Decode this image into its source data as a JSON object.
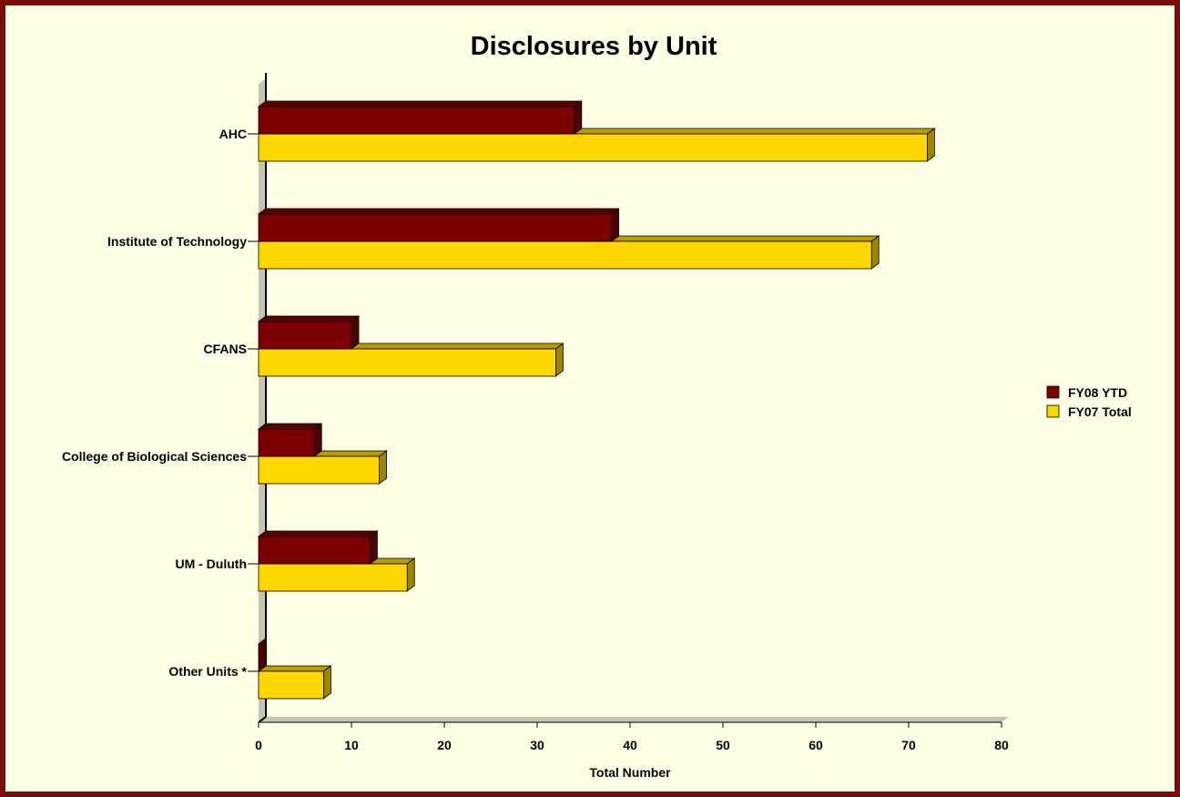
{
  "chart_data": {
    "type": "bar",
    "orientation": "horizontal",
    "title": "Disclosures by Unit",
    "xlabel": "Total Number",
    "ylabel": "",
    "xlim": [
      0,
      80
    ],
    "ticks": [
      0,
      10,
      20,
      30,
      40,
      50,
      60,
      70,
      80
    ],
    "categories": [
      "AHC",
      "Institute of Technology",
      "CFANS",
      "College of Biological Sciences",
      "UM - Duluth",
      "Other Units *"
    ],
    "series": [
      {
        "name": "FY08 YTD",
        "values": [
          34,
          38,
          10,
          6,
          12,
          0
        ],
        "color": "#7b0000"
      },
      {
        "name": "FY07 Total",
        "values": [
          72,
          66,
          32,
          13,
          16,
          7
        ],
        "color": "#ffd700"
      }
    ],
    "legend_position": "right",
    "grid": false,
    "style": "3d"
  },
  "colors": {
    "border": "#7b0c0c",
    "background": "#ffffe6",
    "wall": "#c8c3b4",
    "floor": "#c8c3b4"
  }
}
